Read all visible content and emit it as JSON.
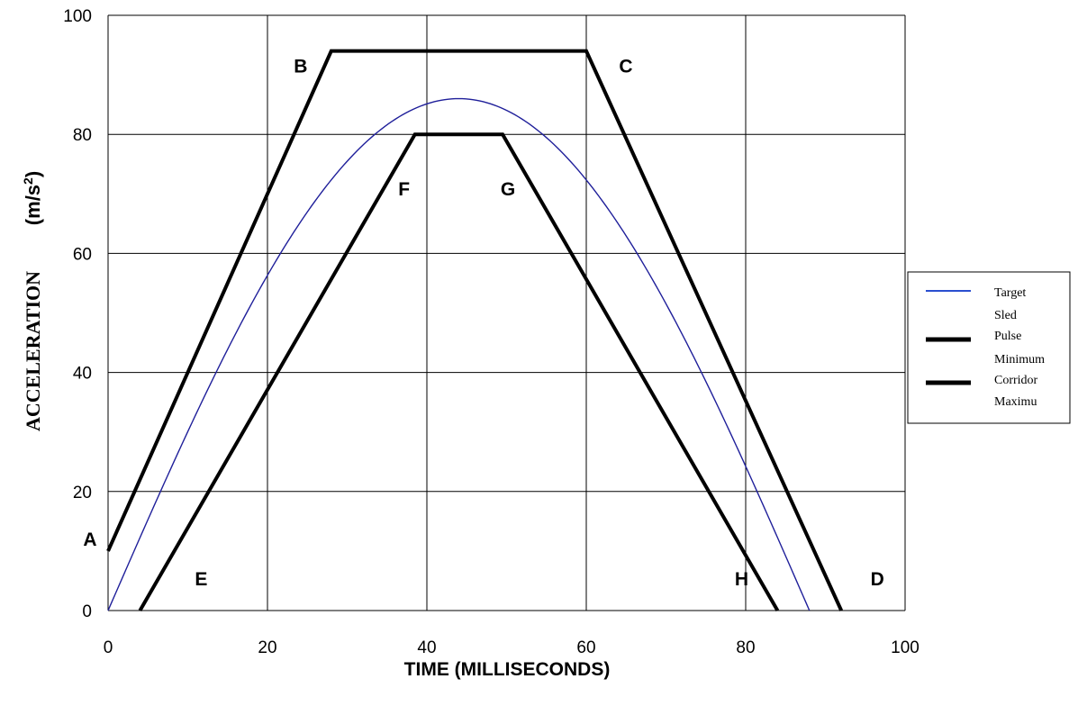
{
  "chart_data": {
    "type": "line",
    "xlabel": "TIME (MILLISECONDS)",
    "ylabel": "ACCELERATION",
    "ylabel_unit": "(m/s",
    "ylabel_unit_sup": "2",
    "ylabel_unit_close": ")",
    "xlim": [
      0,
      100
    ],
    "ylim": [
      0,
      100
    ],
    "x_ticks": [
      "0",
      "20",
      "40",
      "60",
      "80",
      "100"
    ],
    "y_ticks": [
      "0",
      "20",
      "40",
      "60",
      "80",
      "100"
    ],
    "grid": true,
    "legend_position": "right",
    "legend_labels": [
      "Target",
      "Sled",
      "Pulse",
      "Minimum",
      "Corridor",
      "Maximu"
    ],
    "series": [
      {
        "name": "Target Sled Pulse",
        "color": "#1f1f9a",
        "curve": "sine half-wave",
        "x": [
          0,
          4,
          8,
          12,
          16,
          20,
          24,
          28,
          32,
          36,
          40,
          44,
          48,
          52,
          56,
          60,
          64,
          68,
          72,
          76,
          80,
          84,
          88
        ],
        "values": [
          0,
          12.3,
          24.2,
          35.6,
          46.2,
          55.7,
          64.0,
          70.8,
          76.2,
          79.9,
          81.8,
          86.0,
          81.8,
          79.9,
          76.2,
          70.8,
          64.0,
          55.7,
          46.2,
          35.6,
          24.2,
          12.3,
          0
        ]
      },
      {
        "name": "Minimum Corridor",
        "color": "#000000",
        "x": [
          4,
          38.5,
          49.5,
          84
        ],
        "values": [
          0,
          80,
          80,
          0
        ]
      },
      {
        "name": "Maximum Corridor",
        "color": "#000000",
        "x": [
          0,
          28,
          60,
          92
        ],
        "values": [
          10,
          94,
          94,
          0
        ]
      }
    ],
    "annotations": [
      {
        "label": "A",
        "x": 0,
        "y": 10
      },
      {
        "label": "B",
        "x": 28,
        "y": 94
      },
      {
        "label": "C",
        "x": 60,
        "y": 94
      },
      {
        "label": "D",
        "x": 92,
        "y": 0
      },
      {
        "label": "E",
        "x": 4,
        "y": 0
      },
      {
        "label": "F",
        "x": 38.5,
        "y": 80
      },
      {
        "label": "G",
        "x": 49.5,
        "y": 80
      },
      {
        "label": "H",
        "x": 84,
        "y": 0
      }
    ]
  }
}
